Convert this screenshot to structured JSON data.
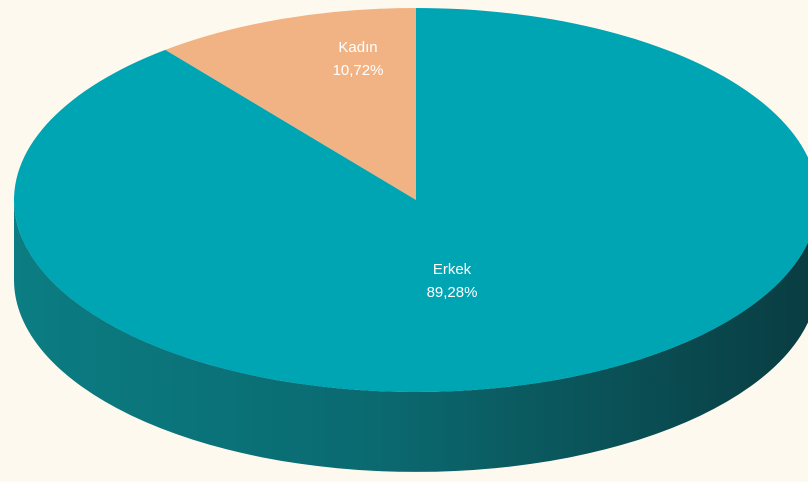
{
  "chart_data": {
    "type": "pie",
    "slices": [
      {
        "label": "Kadın",
        "value": 10.72,
        "value_text": "10,72%",
        "color": "#f2b384"
      },
      {
        "label": "Erkek",
        "value": 89.28,
        "value_text": "89,28%",
        "color": "#00a5b4"
      }
    ],
    "side_color": "#0a6e73",
    "side_dark_color": "#0a3f44",
    "background": "#fdf9ef"
  }
}
